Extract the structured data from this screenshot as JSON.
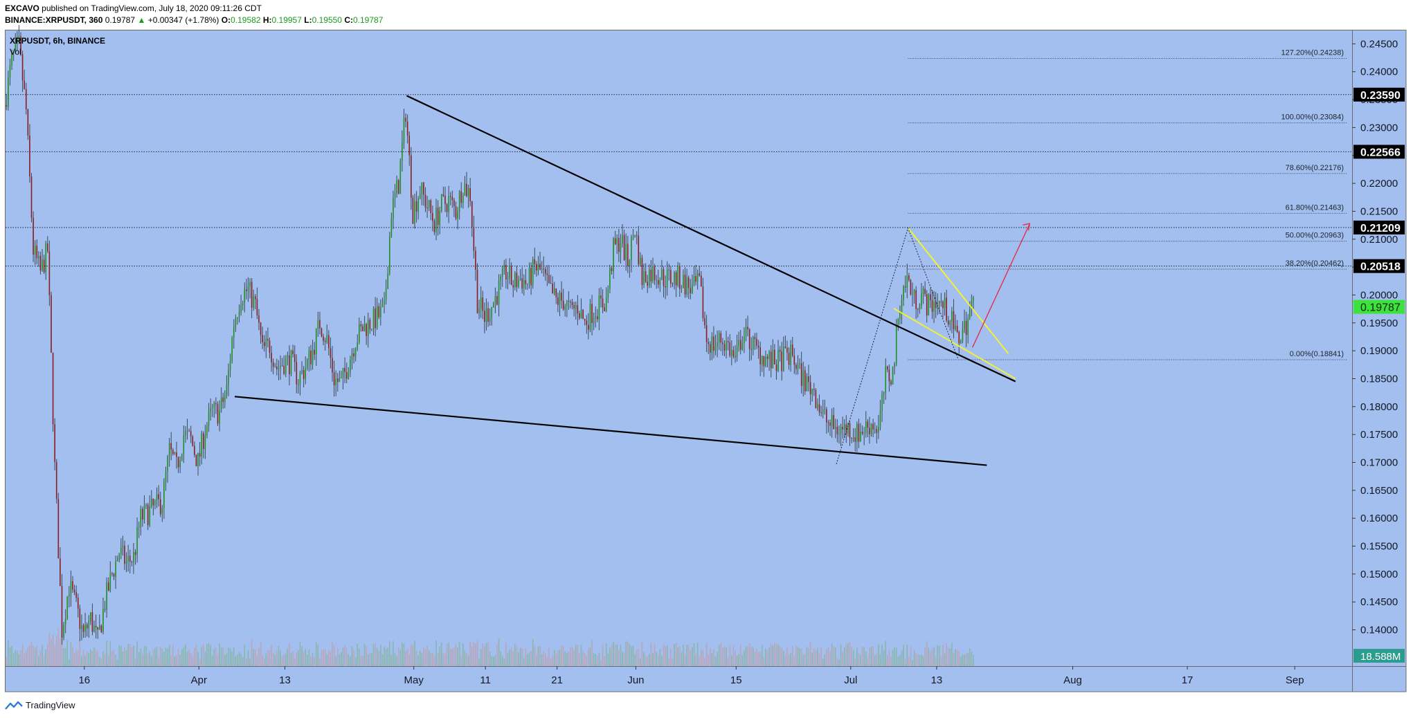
{
  "header": {
    "publisher": "EXCAVO",
    "published_text": "published on TradingView.com, July 18, 2020 09:11:26 CDT",
    "symbol_line": "BINANCE:XRPUSDT, 360",
    "last_price": "0.19787",
    "change_arrow": "▲",
    "change": "+0.00347 (+1.78%)",
    "o_label": "O:",
    "o_value": "0.19582",
    "h_label": "H:",
    "h_value": "0.19957",
    "l_label": "L:",
    "l_value": "0.19550",
    "c_label": "C:",
    "c_value": "0.19787"
  },
  "pane": {
    "symbol_label": "XRPUSDT, 6h, BINANCE",
    "vol_label": "Vol"
  },
  "footer": {
    "brand": "TradingView",
    "logo_icon": "tradingview-logo-icon"
  },
  "colors": {
    "background": "#a3bff0",
    "up": "#1f8f1f",
    "down": "#8a1d1d",
    "wick": "#3c4a55",
    "trendline": "#000000",
    "wedge": "#f2f230",
    "target_arrow": "#e0324b",
    "current_price_bg": "#3de23d",
    "price_tag_bg": "#000000"
  },
  "chart_data": {
    "type": "candlestick",
    "symbol": "XRPUSDT",
    "exchange": "BINANCE",
    "interval": "6h",
    "y_ticks": [
      "0.14000",
      "0.14500",
      "0.15000",
      "0.15500",
      "0.16000",
      "0.16500",
      "0.17000",
      "0.17500",
      "0.18000",
      "0.18500",
      "0.19000",
      "0.19500",
      "0.20000",
      "0.20500",
      "0.21000",
      "0.21500",
      "0.22000",
      "0.22500",
      "0.23000",
      "0.23500",
      "0.24000",
      "0.24500"
    ],
    "ylim": [
      0.1335,
      0.2474
    ],
    "x_ticks": [
      {
        "label": "16",
        "date": "2020-03-16"
      },
      {
        "label": "Apr",
        "date": "2020-04-01"
      },
      {
        "label": "13",
        "date": "2020-04-13"
      },
      {
        "label": "May",
        "date": "2020-05-01"
      },
      {
        "label": "11",
        "date": "2020-05-11"
      },
      {
        "label": "21",
        "date": "2020-05-21"
      },
      {
        "label": "Jun",
        "date": "2020-06-01"
      },
      {
        "label": "15",
        "date": "2020-06-15"
      },
      {
        "label": "Jul",
        "date": "2020-07-01"
      },
      {
        "label": "13",
        "date": "2020-07-13"
      },
      {
        "label": "Aug",
        "date": "2020-08-01"
      },
      {
        "label": "17",
        "date": "2020-08-17"
      },
      {
        "label": "Sep",
        "date": "2020-09-01"
      }
    ],
    "xlim": [
      "2020-03-05",
      "2020-09-09"
    ],
    "price_path": [
      [
        "2020-03-05",
        0.234
      ],
      [
        "2020-03-06",
        0.242
      ],
      [
        "2020-03-07",
        0.2445
      ],
      [
        "2020-03-08",
        0.233
      ],
      [
        "2020-03-09",
        0.208
      ],
      [
        "2020-03-10",
        0.204
      ],
      [
        "2020-03-11",
        0.208
      ],
      [
        "2020-03-12",
        0.169
      ],
      [
        "2020-03-13",
        0.14
      ],
      [
        "2020-03-14",
        0.148
      ],
      [
        "2020-03-15",
        0.144
      ],
      [
        "2020-03-16",
        0.139
      ],
      [
        "2020-03-17",
        0.142
      ],
      [
        "2020-03-18",
        0.138
      ],
      [
        "2020-03-19",
        0.145
      ],
      [
        "2020-03-20",
        0.15
      ],
      [
        "2020-03-21",
        0.154
      ],
      [
        "2020-03-22",
        0.152
      ],
      [
        "2020-03-23",
        0.153
      ],
      [
        "2020-03-24",
        0.16
      ],
      [
        "2020-03-25",
        0.161
      ],
      [
        "2020-03-26",
        0.162
      ],
      [
        "2020-03-27",
        0.163
      ],
      [
        "2020-03-28",
        0.172
      ],
      [
        "2020-03-29",
        0.169
      ],
      [
        "2020-03-30",
        0.175
      ],
      [
        "2020-03-31",
        0.174
      ],
      [
        "2020-04-01",
        0.17
      ],
      [
        "2020-04-02",
        0.176
      ],
      [
        "2020-04-03",
        0.179
      ],
      [
        "2020-04-04",
        0.179
      ],
      [
        "2020-04-05",
        0.183
      ],
      [
        "2020-04-06",
        0.195
      ],
      [
        "2020-04-07",
        0.2
      ],
      [
        "2020-04-08",
        0.201
      ],
      [
        "2020-04-09",
        0.198
      ],
      [
        "2020-04-10",
        0.19
      ],
      [
        "2020-04-11",
        0.191
      ],
      [
        "2020-04-12",
        0.187
      ],
      [
        "2020-04-13",
        0.188
      ],
      [
        "2020-04-14",
        0.188
      ],
      [
        "2020-04-15",
        0.185
      ],
      [
        "2020-04-16",
        0.187
      ],
      [
        "2020-04-17",
        0.19
      ],
      [
        "2020-04-18",
        0.195
      ],
      [
        "2020-04-19",
        0.192
      ],
      [
        "2020-04-20",
        0.185
      ],
      [
        "2020-04-21",
        0.184
      ],
      [
        "2020-04-22",
        0.188
      ],
      [
        "2020-04-23",
        0.192
      ],
      [
        "2020-04-24",
        0.194
      ],
      [
        "2020-04-25",
        0.195
      ],
      [
        "2020-04-26",
        0.196
      ],
      [
        "2020-04-27",
        0.197
      ],
      [
        "2020-04-28",
        0.215
      ],
      [
        "2020-04-29",
        0.22
      ],
      [
        "2020-04-30",
        0.233
      ],
      [
        "2020-05-01",
        0.215
      ],
      [
        "2020-05-02",
        0.219
      ],
      [
        "2020-05-03",
        0.216
      ],
      [
        "2020-05-04",
        0.213
      ],
      [
        "2020-05-05",
        0.216
      ],
      [
        "2020-05-06",
        0.217
      ],
      [
        "2020-05-07",
        0.215
      ],
      [
        "2020-05-08",
        0.22
      ],
      [
        "2020-05-09",
        0.218
      ],
      [
        "2020-05-10",
        0.199
      ],
      [
        "2020-05-11",
        0.196
      ],
      [
        "2020-05-12",
        0.198
      ],
      [
        "2020-05-13",
        0.201
      ],
      [
        "2020-05-14",
        0.204
      ],
      [
        "2020-05-15",
        0.202
      ],
      [
        "2020-05-16",
        0.203
      ],
      [
        "2020-05-17",
        0.202
      ],
      [
        "2020-05-18",
        0.205
      ],
      [
        "2020-05-19",
        0.204
      ],
      [
        "2020-05-20",
        0.201
      ],
      [
        "2020-05-21",
        0.199
      ],
      [
        "2020-05-22",
        0.199
      ],
      [
        "2020-05-23",
        0.197
      ],
      [
        "2020-05-24",
        0.198
      ],
      [
        "2020-05-25",
        0.195
      ],
      [
        "2020-05-26",
        0.197
      ],
      [
        "2020-05-27",
        0.198
      ],
      [
        "2020-05-28",
        0.199
      ],
      [
        "2020-05-29",
        0.208
      ],
      [
        "2020-05-30",
        0.21
      ],
      [
        "2020-05-31",
        0.206
      ],
      [
        "2020-06-01",
        0.212
      ],
      [
        "2020-06-02",
        0.203
      ],
      [
        "2020-06-03",
        0.204
      ],
      [
        "2020-06-04",
        0.204
      ],
      [
        "2020-06-05",
        0.203
      ],
      [
        "2020-06-06",
        0.203
      ],
      [
        "2020-06-07",
        0.203
      ],
      [
        "2020-06-08",
        0.202
      ],
      [
        "2020-06-09",
        0.201
      ],
      [
        "2020-06-10",
        0.202
      ],
      [
        "2020-06-11",
        0.192
      ],
      [
        "2020-06-12",
        0.191
      ],
      [
        "2020-06-13",
        0.192
      ],
      [
        "2020-06-14",
        0.191
      ],
      [
        "2020-06-15",
        0.188
      ],
      [
        "2020-06-16",
        0.193
      ],
      [
        "2020-06-17",
        0.192
      ],
      [
        "2020-06-18",
        0.19
      ],
      [
        "2020-06-19",
        0.189
      ],
      [
        "2020-06-20",
        0.188
      ],
      [
        "2020-06-21",
        0.188
      ],
      [
        "2020-06-22",
        0.189
      ],
      [
        "2020-06-23",
        0.189
      ],
      [
        "2020-06-24",
        0.186
      ],
      [
        "2020-06-25",
        0.184
      ],
      [
        "2020-06-26",
        0.183
      ],
      [
        "2020-06-27",
        0.179
      ],
      [
        "2020-06-28",
        0.177
      ],
      [
        "2020-06-29",
        0.176
      ],
      [
        "2020-06-30",
        0.176
      ],
      [
        "2020-07-01",
        0.176
      ],
      [
        "2020-07-02",
        0.175
      ],
      [
        "2020-07-03",
        0.176
      ],
      [
        "2020-07-04",
        0.177
      ],
      [
        "2020-07-05",
        0.176
      ],
      [
        "2020-07-06",
        0.185
      ],
      [
        "2020-07-07",
        0.186
      ],
      [
        "2020-07-08",
        0.199
      ],
      [
        "2020-07-09",
        0.203
      ],
      [
        "2020-07-10",
        0.199
      ],
      [
        "2020-07-11",
        0.2
      ],
      [
        "2020-07-12",
        0.198
      ],
      [
        "2020-07-13",
        0.199
      ],
      [
        "2020-07-14",
        0.198
      ],
      [
        "2020-07-15",
        0.196
      ],
      [
        "2020-07-16",
        0.192
      ],
      [
        "2020-07-17",
        0.194
      ],
      [
        "2020-07-18",
        0.1979
      ]
    ],
    "fibonacci_levels": [
      {
        "label": "127.20%(0.24238)",
        "price": 0.24238
      },
      {
        "label": "100.00%(0.23084)",
        "price": 0.23084
      },
      {
        "label": "78.60%(0.22176)",
        "price": 0.22176
      },
      {
        "label": "61.80%(0.21463)",
        "price": 0.21463
      },
      {
        "label": "50.00%(0.20963)",
        "price": 0.20963
      },
      {
        "label": "38.20%(0.20462)",
        "price": 0.20462
      },
      {
        "label": "0.00%(0.18841)",
        "price": 0.18841
      }
    ],
    "fib_start_date": "2020-07-09",
    "horizontal_levels": [
      {
        "label": "0.23590",
        "price": 0.2359
      },
      {
        "label": "0.22566",
        "price": 0.22566
      },
      {
        "label": "0.21209",
        "price": 0.21209
      },
      {
        "label": "0.20518",
        "price": 0.20518
      }
    ],
    "current_price": {
      "label": "0.19787",
      "price": 0.19787
    },
    "volume_label": "18.588M",
    "trendlines": [
      {
        "name": "upper-trendline",
        "color": "#000000",
        "from": [
          "2020-04-30",
          0.2357
        ],
        "to": [
          "2020-07-24",
          0.1845
        ]
      },
      {
        "name": "lower-trendline",
        "color": "#000000",
        "from": [
          "2020-04-06",
          0.1818
        ],
        "to": [
          "2020-07-20",
          0.1695
        ]
      },
      {
        "name": "wedge-upper",
        "color": "#f2f230",
        "from": [
          "2020-07-09",
          0.212
        ],
        "to": [
          "2020-07-23",
          0.1895
        ]
      },
      {
        "name": "wedge-lower",
        "color": "#f2f230",
        "from": [
          "2020-07-07",
          0.1976
        ],
        "to": [
          "2020-07-24",
          0.185
        ]
      },
      {
        "name": "target-arrow",
        "color": "#e0324b",
        "from": [
          "2020-07-18",
          0.1906
        ],
        "to": [
          "2020-07-26",
          0.2128
        ]
      }
    ],
    "dotted_projection": [
      [
        "2020-06-29",
        0.1697
      ],
      [
        "2020-07-09",
        0.212
      ],
      [
        "2020-07-16",
        0.1885
      ]
    ],
    "annotations_note_none": ""
  }
}
